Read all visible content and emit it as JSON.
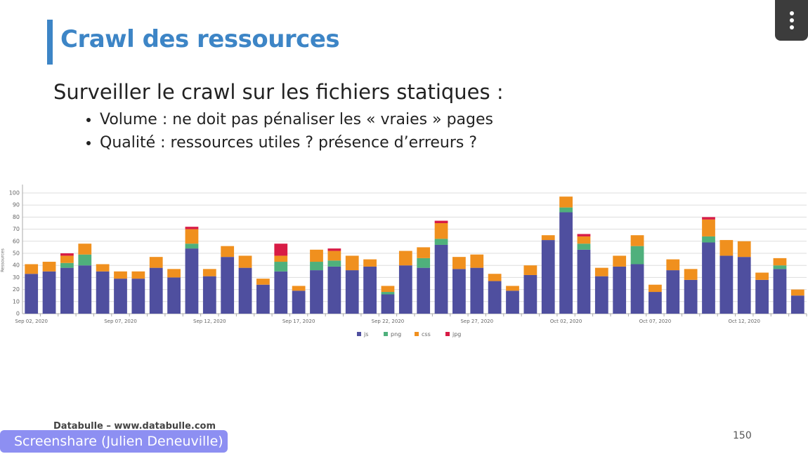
{
  "slide": {
    "title": "Crawl des ressources",
    "heading": "Surveiller le crawl sur les fichiers statiques :",
    "bullets": [
      "Volume : ne doit pas pénaliser les « vraies » pages",
      "Qualité : ressources utiles ? présence d’erreurs ?"
    ],
    "footer": "Databulle – www.databulle.com",
    "page_number": "150"
  },
  "overlay": {
    "screenshare": "Screenshare (Julien Deneuville)"
  },
  "chart_data": {
    "type": "stacked_bar",
    "y_label": "Ressources",
    "categories": [
      "Sep 02, 2020",
      null,
      null,
      null,
      null,
      "Sep 07, 2020",
      null,
      null,
      null,
      null,
      "Sep 12, 2020",
      null,
      null,
      null,
      null,
      "Sep 17, 2020",
      null,
      null,
      null,
      null,
      "Sep 22, 2020",
      null,
      null,
      null,
      null,
      "Sep 27, 2020",
      null,
      null,
      null,
      null,
      "Oct 02, 2020",
      null,
      null,
      null,
      null,
      "Oct 07, 2020",
      null,
      null,
      null,
      null,
      "Oct 12, 2020",
      null,
      null,
      null
    ],
    "series": [
      {
        "name": "js",
        "color": "#4f4f9f",
        "values": [
          33,
          35,
          38,
          40,
          35,
          29,
          29,
          38,
          30,
          54,
          31,
          47,
          38,
          24,
          35,
          19,
          36,
          39,
          36,
          39,
          16,
          40,
          38,
          57,
          37,
          38,
          27,
          19,
          32,
          61,
          84,
          53,
          31,
          39,
          41,
          18,
          36,
          28,
          59,
          48,
          47,
          28,
          37,
          15
        ]
      },
      {
        "name": "png",
        "color": "#4fb07c",
        "values": [
          0,
          0,
          4,
          9,
          0,
          0,
          0,
          0,
          0,
          4,
          0,
          0,
          0,
          0,
          8,
          0,
          7,
          5,
          0,
          0,
          2,
          0,
          8,
          5,
          0,
          0,
          0,
          0,
          0,
          0,
          4,
          5,
          0,
          0,
          15,
          0,
          0,
          0,
          5,
          0,
          0,
          0,
          3,
          0
        ]
      },
      {
        "name": "css",
        "color": "#f0901e",
        "values": [
          8,
          8,
          6,
          9,
          6,
          6,
          6,
          9,
          7,
          12,
          6,
          9,
          10,
          5,
          5,
          4,
          10,
          8,
          12,
          6,
          5,
          12,
          9,
          13,
          10,
          11,
          6,
          4,
          8,
          4,
          9,
          6,
          7,
          9,
          9,
          6,
          9,
          9,
          14,
          13,
          13,
          6,
          6,
          5
        ]
      },
      {
        "name": "jpg",
        "color": "#d81b45",
        "values": [
          0,
          0,
          2,
          0,
          0,
          0,
          0,
          0,
          0,
          2,
          0,
          0,
          0,
          0,
          10,
          0,
          0,
          2,
          0,
          0,
          0,
          0,
          0,
          2,
          0,
          0,
          0,
          0,
          0,
          0,
          0,
          2,
          0,
          0,
          0,
          0,
          0,
          0,
          2,
          0,
          0,
          0,
          0,
          0
        ]
      }
    ],
    "ylim": [
      0,
      100
    ],
    "yticks": [
      0,
      10,
      20,
      30,
      40,
      50,
      60,
      70,
      80,
      90,
      100
    ],
    "grid": true,
    "legend": "bottom"
  }
}
